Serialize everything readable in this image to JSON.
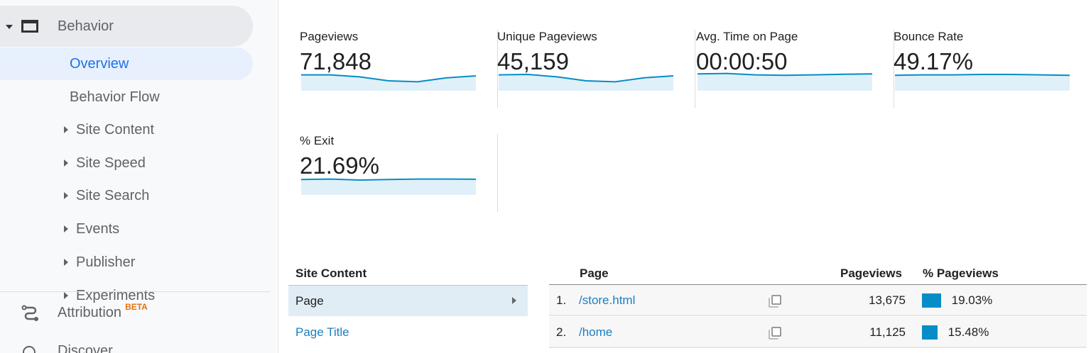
{
  "sidebar": {
    "behavior": "Behavior",
    "overview": "Overview",
    "behavior_flow": "Behavior Flow",
    "items": [
      "Site Content",
      "Site Speed",
      "Site Search",
      "Events",
      "Publisher",
      "Experiments"
    ],
    "attribution": "Attribution",
    "beta": "BETA",
    "discover": "Discover"
  },
  "metrics": [
    {
      "label": "Pageviews",
      "value": "71,848",
      "sparkline": [
        0.8,
        0.8,
        0.7,
        0.5,
        0.45,
        0.65,
        0.75
      ]
    },
    {
      "label": "Unique Pageviews",
      "value": "45,159",
      "sparkline": [
        0.8,
        0.82,
        0.7,
        0.5,
        0.45,
        0.65,
        0.75
      ]
    },
    {
      "label": "Avg. Time on Page",
      "value": "00:00:50",
      "sparkline": [
        0.85,
        0.87,
        0.8,
        0.78,
        0.8,
        0.83,
        0.85
      ]
    },
    {
      "label": "Bounce Rate",
      "value": "49.17%",
      "sparkline": [
        0.78,
        0.8,
        0.8,
        0.82,
        0.82,
        0.8,
        0.78
      ]
    },
    {
      "label": "% Exit",
      "value": "21.69%",
      "sparkline": [
        0.78,
        0.8,
        0.75,
        0.78,
        0.8,
        0.8,
        0.79
      ]
    }
  ],
  "colors": {
    "accent": "#1a73e8",
    "spark_line": "#058dc7",
    "spark_fill": "#e0f0f9",
    "link": "#1a7fc1",
    "beta": "#e8710a"
  },
  "site_content": {
    "header": "Site Content",
    "items": [
      "Page",
      "Page Title"
    ]
  },
  "table": {
    "headers": {
      "page": "Page",
      "pageviews": "Pageviews",
      "pct": "% Pageviews"
    },
    "rows": [
      {
        "n": "1.",
        "page": "/store.html",
        "pageviews": "13,675",
        "pct": "19.03%",
        "share": 19.03
      },
      {
        "n": "2.",
        "page": "/home",
        "pageviews": "11,125",
        "pct": "15.48%",
        "share": 15.48
      }
    ]
  }
}
